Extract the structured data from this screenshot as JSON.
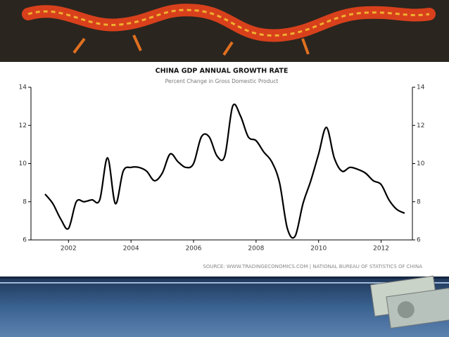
{
  "chart_data": {
    "type": "line",
    "title": "CHINA GDP ANNUAL GROWTH RATE",
    "subtitle": "Percent Change in Gross Domestic Product",
    "source": "SOURCE: WWW.TRADINGECONOMICS.COM | NATIONAL BUREAU OF STATISTICS OF CHINA",
    "x": [
      2001.25,
      2001.5,
      2001.75,
      2002.0,
      2002.25,
      2002.5,
      2002.75,
      2003.0,
      2003.25,
      2003.5,
      2003.75,
      2004.0,
      2004.25,
      2004.5,
      2004.75,
      2005.0,
      2005.25,
      2005.5,
      2005.75,
      2006.0,
      2006.25,
      2006.5,
      2006.75,
      2007.0,
      2007.25,
      2007.5,
      2007.75,
      2008.0,
      2008.25,
      2008.5,
      2008.75,
      2009.0,
      2009.25,
      2009.5,
      2009.75,
      2010.0,
      2010.25,
      2010.5,
      2010.75,
      2011.0,
      2011.25,
      2011.5,
      2011.75,
      2012.0,
      2012.25,
      2012.5,
      2012.75
    ],
    "values": [
      8.4,
      7.9,
      7.1,
      6.6,
      8.0,
      8.0,
      8.1,
      8.1,
      10.3,
      7.9,
      9.6,
      9.8,
      9.8,
      9.6,
      9.1,
      9.5,
      10.5,
      10.1,
      9.8,
      10.0,
      11.4,
      11.4,
      10.4,
      10.4,
      13.0,
      12.5,
      11.4,
      11.2,
      10.6,
      10.1,
      9.0,
      6.6,
      6.2,
      7.9,
      9.1,
      10.5,
      11.9,
      10.3,
      9.6,
      9.8,
      9.7,
      9.5,
      9.1,
      8.9,
      8.1,
      7.6,
      7.4
    ],
    "color": "#000000",
    "xlim": [
      2000.8,
      2013.0
    ],
    "xticks": [
      2002,
      2004,
      2006,
      2008,
      2010,
      2012
    ],
    "ylim": [
      6,
      14
    ],
    "yticks": [
      6,
      8,
      10,
      12,
      14
    ],
    "y2lim": [
      6,
      14
    ],
    "y2ticks": [
      6,
      8,
      10,
      12,
      14
    ]
  }
}
